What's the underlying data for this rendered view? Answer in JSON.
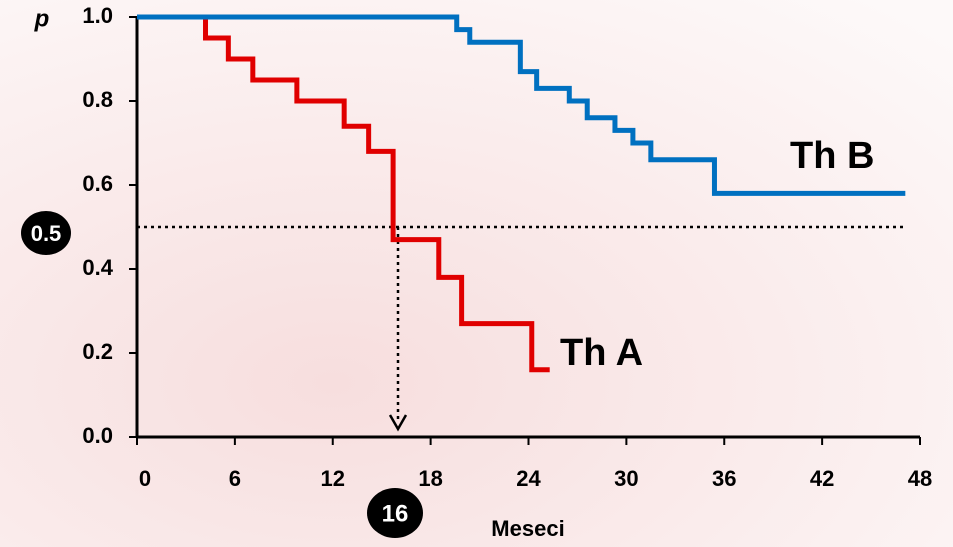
{
  "chart_data": {
    "type": "line",
    "step": true,
    "y_label": "p",
    "x_label": "Meseci",
    "xlim": [
      0,
      48
    ],
    "ylim": [
      0,
      1
    ],
    "xticks": [
      0,
      6,
      12,
      18,
      24,
      30,
      36,
      42,
      48
    ],
    "yticks": [
      {
        "value": 0,
        "label": "0.0"
      },
      {
        "value": 0.2,
        "label": "0.2"
      },
      {
        "value": 0.4,
        "label": "0.4"
      },
      {
        "value": 0.6,
        "label": "0.6"
      },
      {
        "value": 0.8,
        "label": "0.8"
      },
      {
        "value": 1,
        "label": "1.0"
      }
    ],
    "series": [
      {
        "name": "Th A",
        "color": "#e00000",
        "x": [
          0,
          4.2,
          5.6,
          7.1,
          9.8,
          12.7,
          14.2,
          15.7,
          18.5,
          19.9,
          24.2,
          25.3
        ],
        "values": [
          1,
          0.95,
          0.9,
          0.85,
          0.8,
          0.74,
          0.68,
          0.47,
          0.38,
          0.27,
          0.16,
          0.16
        ]
      },
      {
        "name": "Th B",
        "color": "#0070c0",
        "x": [
          0,
          19.6,
          20.4,
          23.5,
          24.5,
          26.5,
          27.6,
          29.3,
          30.4,
          31.5,
          35.4,
          47.1
        ],
        "values": [
          1,
          0.97,
          0.94,
          0.87,
          0.83,
          0.8,
          0.76,
          0.73,
          0.7,
          0.66,
          0.58,
          0.58
        ]
      }
    ],
    "reference": {
      "y": {
        "value": 0.5,
        "label": "0.5"
      },
      "x": 16
    }
  }
}
